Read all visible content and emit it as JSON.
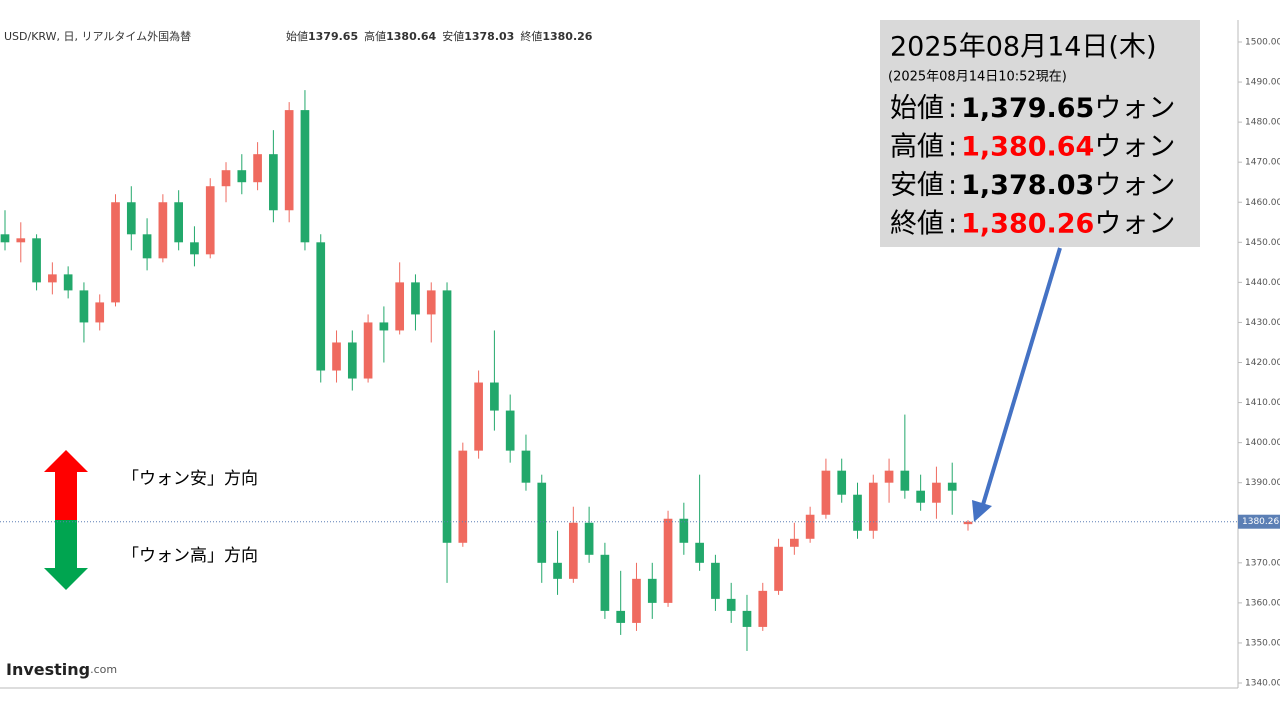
{
  "chart_data": {
    "type": "candlestick",
    "header": {
      "symbol": "USD/KRW, 日, リアルタイム外国為替",
      "ohlc_labels": [
        "始値",
        "高値",
        "安値",
        "終値"
      ]
    },
    "open": [
      1452,
      1450,
      1451,
      1440,
      1442,
      1438,
      1430,
      1435,
      1460,
      1452,
      1446,
      1460,
      1450,
      1447,
      1464,
      1468,
      1465,
      1472,
      1458,
      1483,
      1450,
      1418,
      1425,
      1416,
      1430,
      1428,
      1440,
      1432,
      1438,
      1375,
      1398,
      1415,
      1408,
      1398,
      1390,
      1370,
      1366,
      1380,
      1372,
      1358,
      1355,
      1366,
      1360,
      1381,
      1375,
      1370,
      1361,
      1358,
      1354,
      1363,
      1374,
      1376,
      1382,
      1393,
      1387,
      1378,
      1390,
      1393,
      1388,
      1385,
      1390,
      1379.65
    ],
    "high": [
      1458,
      1455,
      1452,
      1445,
      1444,
      1440,
      1437,
      1462,
      1464,
      1456,
      1462,
      1463,
      1454,
      1466,
      1470,
      1472,
      1475,
      1478,
      1485,
      1488,
      1452,
      1428,
      1428,
      1432,
      1434,
      1445,
      1442,
      1440,
      1440,
      1400,
      1418,
      1428,
      1412,
      1402,
      1392,
      1378,
      1384,
      1384,
      1375,
      1368,
      1370,
      1370,
      1383,
      1385,
      1392,
      1372,
      1365,
      1362,
      1365,
      1376,
      1380,
      1384,
      1396,
      1396,
      1390,
      1392,
      1396,
      1407,
      1392,
      1394,
      1395,
      1380.64
    ],
    "low": [
      1448,
      1445,
      1438,
      1437,
      1436,
      1425,
      1428,
      1434,
      1448,
      1443,
      1445,
      1448,
      1444,
      1446,
      1460,
      1462,
      1463,
      1455,
      1455,
      1448,
      1415,
      1415,
      1413,
      1415,
      1420,
      1427,
      1428,
      1425,
      1365,
      1374,
      1396,
      1403,
      1395,
      1388,
      1365,
      1362,
      1365,
      1370,
      1356,
      1352,
      1353,
      1356,
      1359,
      1372,
      1368,
      1358,
      1355,
      1348,
      1353,
      1362,
      1372,
      1375,
      1381,
      1385,
      1376,
      1376,
      1385,
      1386,
      1383,
      1381,
      1382,
      1378.03
    ],
    "close": [
      1450,
      1451,
      1440,
      1442,
      1438,
      1430,
      1435,
      1460,
      1452,
      1446,
      1460,
      1450,
      1447,
      1464,
      1468,
      1465,
      1472,
      1458,
      1483,
      1450,
      1418,
      1425,
      1416,
      1430,
      1428,
      1440,
      1432,
      1438,
      1375,
      1398,
      1415,
      1408,
      1398,
      1390,
      1370,
      1366,
      1380,
      1372,
      1358,
      1355,
      1366,
      1360,
      1381,
      1375,
      1370,
      1361,
      1358,
      1354,
      1363,
      1374,
      1376,
      1382,
      1393,
      1387,
      1378,
      1390,
      1393,
      1388,
      1385,
      1390,
      1388,
      1380.26
    ],
    "up_color": "#ef6a5f",
    "down_color": "#22a86b",
    "ylim": [
      1338,
      1503
    ],
    "yticks": [
      {
        "value": 1340,
        "label": "1340.00"
      },
      {
        "value": 1350,
        "label": "1350.00"
      },
      {
        "value": 1360,
        "label": "1360.00"
      },
      {
        "value": 1370,
        "label": "1370.00"
      },
      {
        "value": 1380,
        "label": "1380.00"
      },
      {
        "value": 1390,
        "label": "1390.00"
      },
      {
        "value": 1400,
        "label": "1400.00"
      },
      {
        "value": 1410,
        "label": "1410.00"
      },
      {
        "value": 1420,
        "label": "1420.00"
      },
      {
        "value": 1430,
        "label": "1430.00"
      },
      {
        "value": 1440,
        "label": "1440.00"
      },
      {
        "value": 1450,
        "label": "1450.00"
      },
      {
        "value": 1460,
        "label": "1460.00"
      },
      {
        "value": 1470,
        "label": "1470.00"
      },
      {
        "value": 1480,
        "label": "1480.00"
      },
      {
        "value": 1490,
        "label": "1490.00"
      },
      {
        "value": 1500,
        "label": "1500.00"
      }
    ],
    "last_price": {
      "value": 1380.26,
      "label": "1380.26"
    }
  },
  "info_box": {
    "date": "2025年08月14日(木)",
    "as_of": "(2025年08月14日10:52現在)",
    "separator": ":",
    "highlight_color": "#ff0000",
    "rows": [
      {
        "label": "始値",
        "value": "1,379.65",
        "unit": "ウォン",
        "highlight": false
      },
      {
        "label": "高値",
        "value": "1,380.64",
        "unit": "ウォン",
        "highlight": true
      },
      {
        "label": "安値",
        "value": "1,378.03",
        "unit": "ウォン",
        "highlight": false
      },
      {
        "label": "終値",
        "value": "1,380.26",
        "unit": "ウォン",
        "highlight": true
      }
    ]
  },
  "legend": {
    "weak": "「ウォン安」方向",
    "strong": "「ウォン高」方向"
  },
  "logo": {
    "brand": "Investing",
    "suffix": ".com"
  }
}
